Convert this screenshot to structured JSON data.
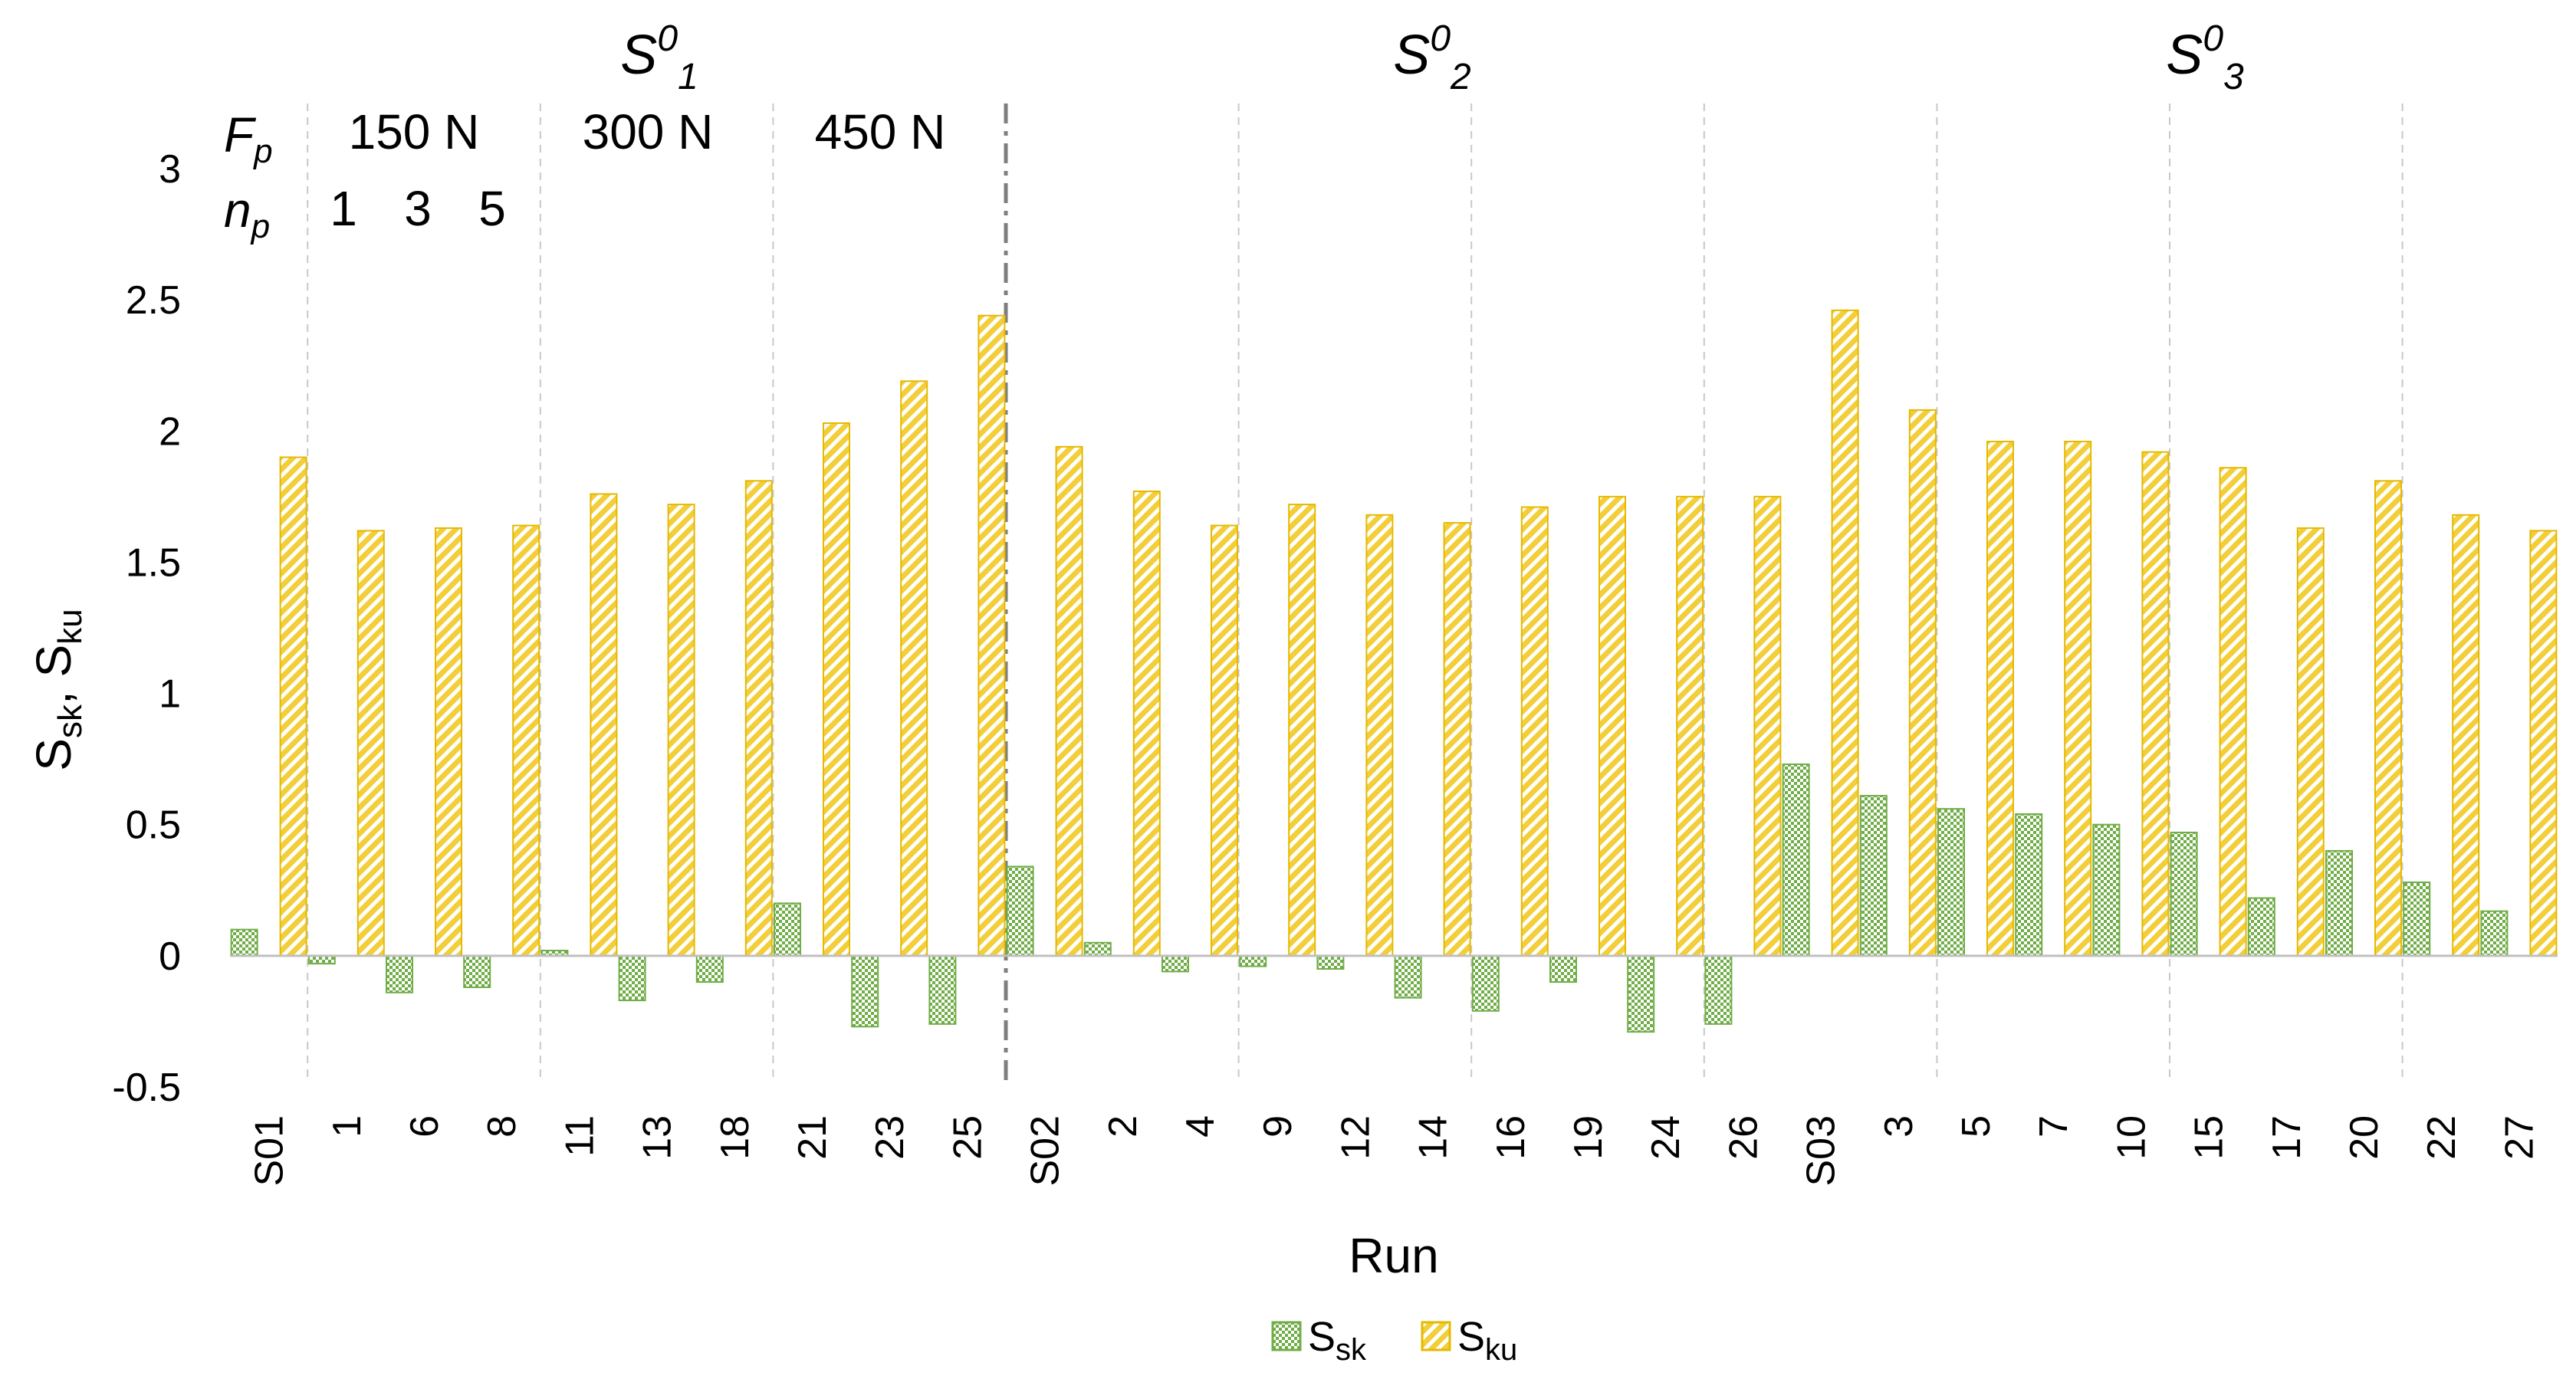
{
  "chart_data": {
    "type": "bar",
    "xlabel": "Run",
    "ylabel": "S",
    "ylabel_parts": {
      "a": "S",
      "a_sub": "sk",
      "sep": ", ",
      "b": "S",
      "b_sub": "ku"
    },
    "ylim": [
      -0.5,
      3
    ],
    "yticks": [
      -0.5,
      0,
      0.5,
      1,
      1.5,
      2,
      2.5,
      3
    ],
    "ytick_labels": [
      "-0.5",
      "0",
      "0.5",
      "1",
      "1.5",
      "2",
      "2.5",
      "3"
    ],
    "categories": [
      "S01",
      "1",
      "6",
      "8",
      "11",
      "13",
      "18",
      "21",
      "23",
      "25",
      "S02",
      "2",
      "4",
      "9",
      "12",
      "14",
      "16",
      "19",
      "24",
      "26",
      "S03",
      "3",
      "5",
      "7",
      "10",
      "15",
      "17",
      "20",
      "22",
      "27"
    ],
    "series": [
      {
        "name": "S_sk",
        "label": "S",
        "sub": "sk",
        "color": "#70ad47",
        "values": [
          0.1,
          -0.03,
          -0.14,
          -0.12,
          0.02,
          -0.17,
          -0.1,
          0.2,
          -0.27,
          -0.26,
          0.34,
          0.05,
          -0.06,
          -0.04,
          -0.05,
          -0.16,
          -0.21,
          -0.1,
          -0.29,
          -0.26,
          0.73,
          0.61,
          0.56,
          0.54,
          0.5,
          0.47,
          0.22,
          0.4,
          0.28,
          0.17
        ]
      },
      {
        "name": "S_ku",
        "label": "S",
        "sub": "ku",
        "color": "#e6b800",
        "values": [
          1.9,
          1.62,
          1.63,
          1.64,
          1.76,
          1.72,
          1.81,
          2.03,
          2.19,
          2.44,
          1.94,
          1.77,
          1.64,
          1.72,
          1.68,
          1.65,
          1.71,
          1.75,
          1.75,
          1.75,
          2.46,
          2.08,
          1.96,
          1.96,
          1.92,
          1.86,
          1.63,
          1.81,
          1.68,
          1.62
        ]
      }
    ],
    "groups": [
      {
        "base": "S",
        "sup": "0",
        "sub": "1"
      },
      {
        "base": "S",
        "sup": "0",
        "sub": "2"
      },
      {
        "base": "S",
        "sup": "0",
        "sub": "3"
      }
    ],
    "factor_labels": {
      "force": {
        "sym": "F",
        "sub": "p",
        "values": [
          "150 N",
          "300 N",
          "450 N"
        ]
      },
      "passes": {
        "sym": "n",
        "sub": "p",
        "values": [
          "1",
          "3",
          "5"
        ]
      }
    },
    "legend_position": "bottom",
    "grid": false
  }
}
